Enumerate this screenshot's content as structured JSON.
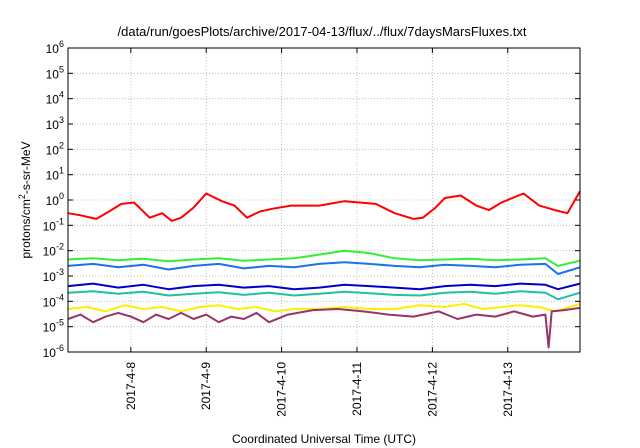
{
  "chart_data": {
    "type": "line",
    "title": "/data/run/goesPlots/archive/2017-04-13/flux/../flux/7daysMarsFluxes.txt",
    "xlabel": "Coordinated Universal Time (UTC)",
    "ylabel_parts": [
      "protons/cm",
      "2",
      "-s-sr-MeV"
    ],
    "y_scale": "log",
    "ylim": [
      1e-06,
      1000000.0
    ],
    "y_ticks": [
      {
        "base": "10",
        "exp": "-6"
      },
      {
        "base": "10",
        "exp": "-5"
      },
      {
        "base": "10",
        "exp": "-4"
      },
      {
        "base": "10",
        "exp": "-3"
      },
      {
        "base": "10",
        "exp": "-2"
      },
      {
        "base": "10",
        "exp": "-1"
      },
      {
        "base": "10",
        "exp": "0"
      },
      {
        "base": "10",
        "exp": "1"
      },
      {
        "base": "10",
        "exp": "2"
      },
      {
        "base": "10",
        "exp": "3"
      },
      {
        "base": "10",
        "exp": "4"
      },
      {
        "base": "10",
        "exp": "5"
      },
      {
        "base": "10",
        "exp": "6"
      }
    ],
    "xlim": [
      "2017-04-07 04:00",
      "2017-04-13 23:00"
    ],
    "x_ticks": [
      "2017-4-8",
      "2017-4-9",
      "2017-4-10",
      "2017-4-11",
      "2017-4-12",
      "2017-4-13"
    ],
    "grid": true,
    "series": [
      {
        "color": "#ff0000",
        "x": [
          "2017-04-07 04:00",
          "2017-04-07 08:00",
          "2017-04-07 13:00",
          "2017-04-07 17:00",
          "2017-04-07 21:00",
          "2017-04-08 01:00",
          "2017-04-08 06:00",
          "2017-04-08 10:00",
          "2017-04-08 13:00",
          "2017-04-08 16:00",
          "2017-04-08 20:00",
          "2017-04-09 00:00",
          "2017-04-09 05:00",
          "2017-04-09 09:00",
          "2017-04-09 13:00",
          "2017-04-09 17:00",
          "2017-04-09 21:00",
          "2017-04-10 03:00",
          "2017-04-10 12:00",
          "2017-04-10 20:00",
          "2017-04-11 06:00",
          "2017-04-11 12:00",
          "2017-04-11 18:00",
          "2017-04-11 21:00",
          "2017-04-12 01:00",
          "2017-04-12 04:00",
          "2017-04-12 09:00",
          "2017-04-12 14:00",
          "2017-04-12 18:00",
          "2017-04-12 22:00",
          "2017-04-13 05:00",
          "2017-04-13 10:00",
          "2017-04-13 15:00",
          "2017-04-13 19:00",
          "2017-04-13 23:00"
        ],
        "y": [
          0.3,
          0.25,
          0.18,
          0.35,
          0.7,
          0.8,
          0.2,
          0.3,
          0.15,
          0.2,
          0.5,
          1.8,
          0.9,
          0.6,
          0.2,
          0.35,
          0.45,
          0.6,
          0.6,
          0.9,
          0.7,
          0.3,
          0.18,
          0.2,
          0.5,
          1.2,
          1.5,
          0.6,
          0.4,
          0.8,
          1.8,
          0.6,
          0.4,
          0.3,
          2.2
        ]
      },
      {
        "color": "#33ee33",
        "x": [
          "2017-04-07 04:00",
          "2017-04-07 12:00",
          "2017-04-07 20:00",
          "2017-04-08 04:00",
          "2017-04-08 12:00",
          "2017-04-08 20:00",
          "2017-04-09 04:00",
          "2017-04-09 12:00",
          "2017-04-09 20:00",
          "2017-04-10 04:00",
          "2017-04-10 12:00",
          "2017-04-10 20:00",
          "2017-04-11 04:00",
          "2017-04-11 12:00",
          "2017-04-11 20:00",
          "2017-04-12 04:00",
          "2017-04-12 12:00",
          "2017-04-12 20:00",
          "2017-04-13 04:00",
          "2017-04-13 12:00",
          "2017-04-13 16:00",
          "2017-04-13 23:00"
        ],
        "y": [
          0.0045,
          0.005,
          0.0042,
          0.0048,
          0.0038,
          0.0045,
          0.005,
          0.004,
          0.0045,
          0.005,
          0.007,
          0.01,
          0.008,
          0.005,
          0.0042,
          0.0045,
          0.0048,
          0.0042,
          0.0045,
          0.005,
          0.0025,
          0.004
        ]
      },
      {
        "color": "#1a73e8",
        "x": [
          "2017-04-07 04:00",
          "2017-04-07 12:00",
          "2017-04-07 20:00",
          "2017-04-08 04:00",
          "2017-04-08 12:00",
          "2017-04-08 20:00",
          "2017-04-09 04:00",
          "2017-04-09 12:00",
          "2017-04-09 20:00",
          "2017-04-10 04:00",
          "2017-04-10 12:00",
          "2017-04-10 20:00",
          "2017-04-11 04:00",
          "2017-04-11 12:00",
          "2017-04-11 20:00",
          "2017-04-12 04:00",
          "2017-04-12 12:00",
          "2017-04-12 20:00",
          "2017-04-13 04:00",
          "2017-04-13 12:00",
          "2017-04-13 16:00",
          "2017-04-13 23:00"
        ],
        "y": [
          0.0025,
          0.003,
          0.0022,
          0.0028,
          0.0018,
          0.0025,
          0.003,
          0.002,
          0.0025,
          0.0022,
          0.003,
          0.0035,
          0.003,
          0.0025,
          0.0022,
          0.0028,
          0.0025,
          0.0022,
          0.0028,
          0.003,
          0.0012,
          0.0022
        ]
      },
      {
        "color": "#0000cc",
        "x": [
          "2017-04-07 04:00",
          "2017-04-07 12:00",
          "2017-04-07 20:00",
          "2017-04-08 04:00",
          "2017-04-08 12:00",
          "2017-04-08 20:00",
          "2017-04-09 04:00",
          "2017-04-09 12:00",
          "2017-04-09 20:00",
          "2017-04-10 04:00",
          "2017-04-10 12:00",
          "2017-04-10 20:00",
          "2017-04-11 04:00",
          "2017-04-11 12:00",
          "2017-04-11 20:00",
          "2017-04-12 04:00",
          "2017-04-12 12:00",
          "2017-04-12 20:00",
          "2017-04-13 04:00",
          "2017-04-13 12:00",
          "2017-04-13 16:00",
          "2017-04-13 23:00"
        ],
        "y": [
          0.0004,
          0.0005,
          0.00035,
          0.00045,
          0.0003,
          0.0004,
          0.00045,
          0.00035,
          0.0004,
          0.0003,
          0.00035,
          0.00045,
          0.0004,
          0.00035,
          0.0003,
          0.0004,
          0.00045,
          0.0004,
          0.0005,
          0.00045,
          0.0003,
          0.0005
        ]
      },
      {
        "color": "#20c0a0",
        "x": [
          "2017-04-07 04:00",
          "2017-04-07 12:00",
          "2017-04-07 20:00",
          "2017-04-08 04:00",
          "2017-04-08 12:00",
          "2017-04-08 20:00",
          "2017-04-09 04:00",
          "2017-04-09 12:00",
          "2017-04-09 20:00",
          "2017-04-10 04:00",
          "2017-04-10 12:00",
          "2017-04-10 20:00",
          "2017-04-11 04:00",
          "2017-04-11 12:00",
          "2017-04-11 20:00",
          "2017-04-12 04:00",
          "2017-04-12 12:00",
          "2017-04-12 20:00",
          "2017-04-13 04:00",
          "2017-04-13 12:00",
          "2017-04-13 16:00",
          "2017-04-13 23:00"
        ],
        "y": [
          0.00022,
          0.00025,
          0.0002,
          0.00024,
          0.00017,
          0.0002,
          0.00023,
          0.00018,
          0.00022,
          0.00017,
          0.0002,
          0.00024,
          0.00021,
          0.00018,
          0.00017,
          0.00022,
          0.00024,
          0.0002,
          0.00025,
          0.00022,
          0.00012,
          0.00022
        ]
      },
      {
        "color": "#ffee00",
        "x": [
          "2017-04-07 04:00",
          "2017-04-07 10:00",
          "2017-04-07 16:00",
          "2017-04-07 22:00",
          "2017-04-08 04:00",
          "2017-04-08 10:00",
          "2017-04-08 16:00",
          "2017-04-08 22:00",
          "2017-04-09 04:00",
          "2017-04-09 10:00",
          "2017-04-09 16:00",
          "2017-04-09 22:00",
          "2017-04-10 04:00",
          "2017-04-10 12:00",
          "2017-04-10 20:00",
          "2017-04-11 04:00",
          "2017-04-11 12:00",
          "2017-04-11 20:00",
          "2017-04-12 04:00",
          "2017-04-12 10:00",
          "2017-04-12 16:00",
          "2017-04-12 22:00",
          "2017-04-13 04:00",
          "2017-04-13 10:00",
          "2017-04-13 15:00",
          "2017-04-13 23:00"
        ],
        "y": [
          5e-05,
          6e-05,
          4e-05,
          7e-05,
          5e-05,
          6e-05,
          4e-05,
          6e-05,
          7e-05,
          5e-05,
          6e-05,
          4e-05,
          5e-05,
          5e-05,
          6e-05,
          5e-05,
          5e-05,
          7e-05,
          6e-05,
          8e-05,
          5e-05,
          6e-05,
          7e-05,
          6e-05,
          4e-05,
          8e-05
        ]
      },
      {
        "color": "#99336b",
        "x": [
          "2017-04-07 04:00",
          "2017-04-07 08:00",
          "2017-04-07 12:00",
          "2017-04-07 16:00",
          "2017-04-07 20:00",
          "2017-04-08 00:00",
          "2017-04-08 04:00",
          "2017-04-08 08:00",
          "2017-04-08 12:00",
          "2017-04-08 16:00",
          "2017-04-08 20:00",
          "2017-04-09 00:00",
          "2017-04-09 04:00",
          "2017-04-09 08:00",
          "2017-04-09 12:00",
          "2017-04-09 16:00",
          "2017-04-09 20:00",
          "2017-04-10 02:00",
          "2017-04-10 10:00",
          "2017-04-10 18:00",
          "2017-04-11 02:00",
          "2017-04-11 10:00",
          "2017-04-11 18:00",
          "2017-04-12 02:00",
          "2017-04-12 08:00",
          "2017-04-12 14:00",
          "2017-04-12 20:00",
          "2017-04-13 02:00",
          "2017-04-13 08:00",
          "2017-04-13 12:00",
          "2017-04-13 13:00",
          "2017-04-13 14:00",
          "2017-04-13 18:00",
          "2017-04-13 23:00"
        ],
        "y": [
          2e-05,
          3e-05,
          1.5e-05,
          2.5e-05,
          3.5e-05,
          2.5e-05,
          1.5e-05,
          3e-05,
          2e-05,
          3.5e-05,
          2e-05,
          3e-05,
          1.5e-05,
          2.5e-05,
          2e-05,
          3.5e-05,
          1.5e-05,
          3e-05,
          4.5e-05,
          5e-05,
          4e-05,
          3e-05,
          2.5e-05,
          4e-05,
          2e-05,
          3e-05,
          2.5e-05,
          4e-05,
          2.5e-05,
          3e-05,
          1.5e-06,
          4e-05,
          4.5e-05,
          5.5e-05
        ]
      }
    ]
  }
}
